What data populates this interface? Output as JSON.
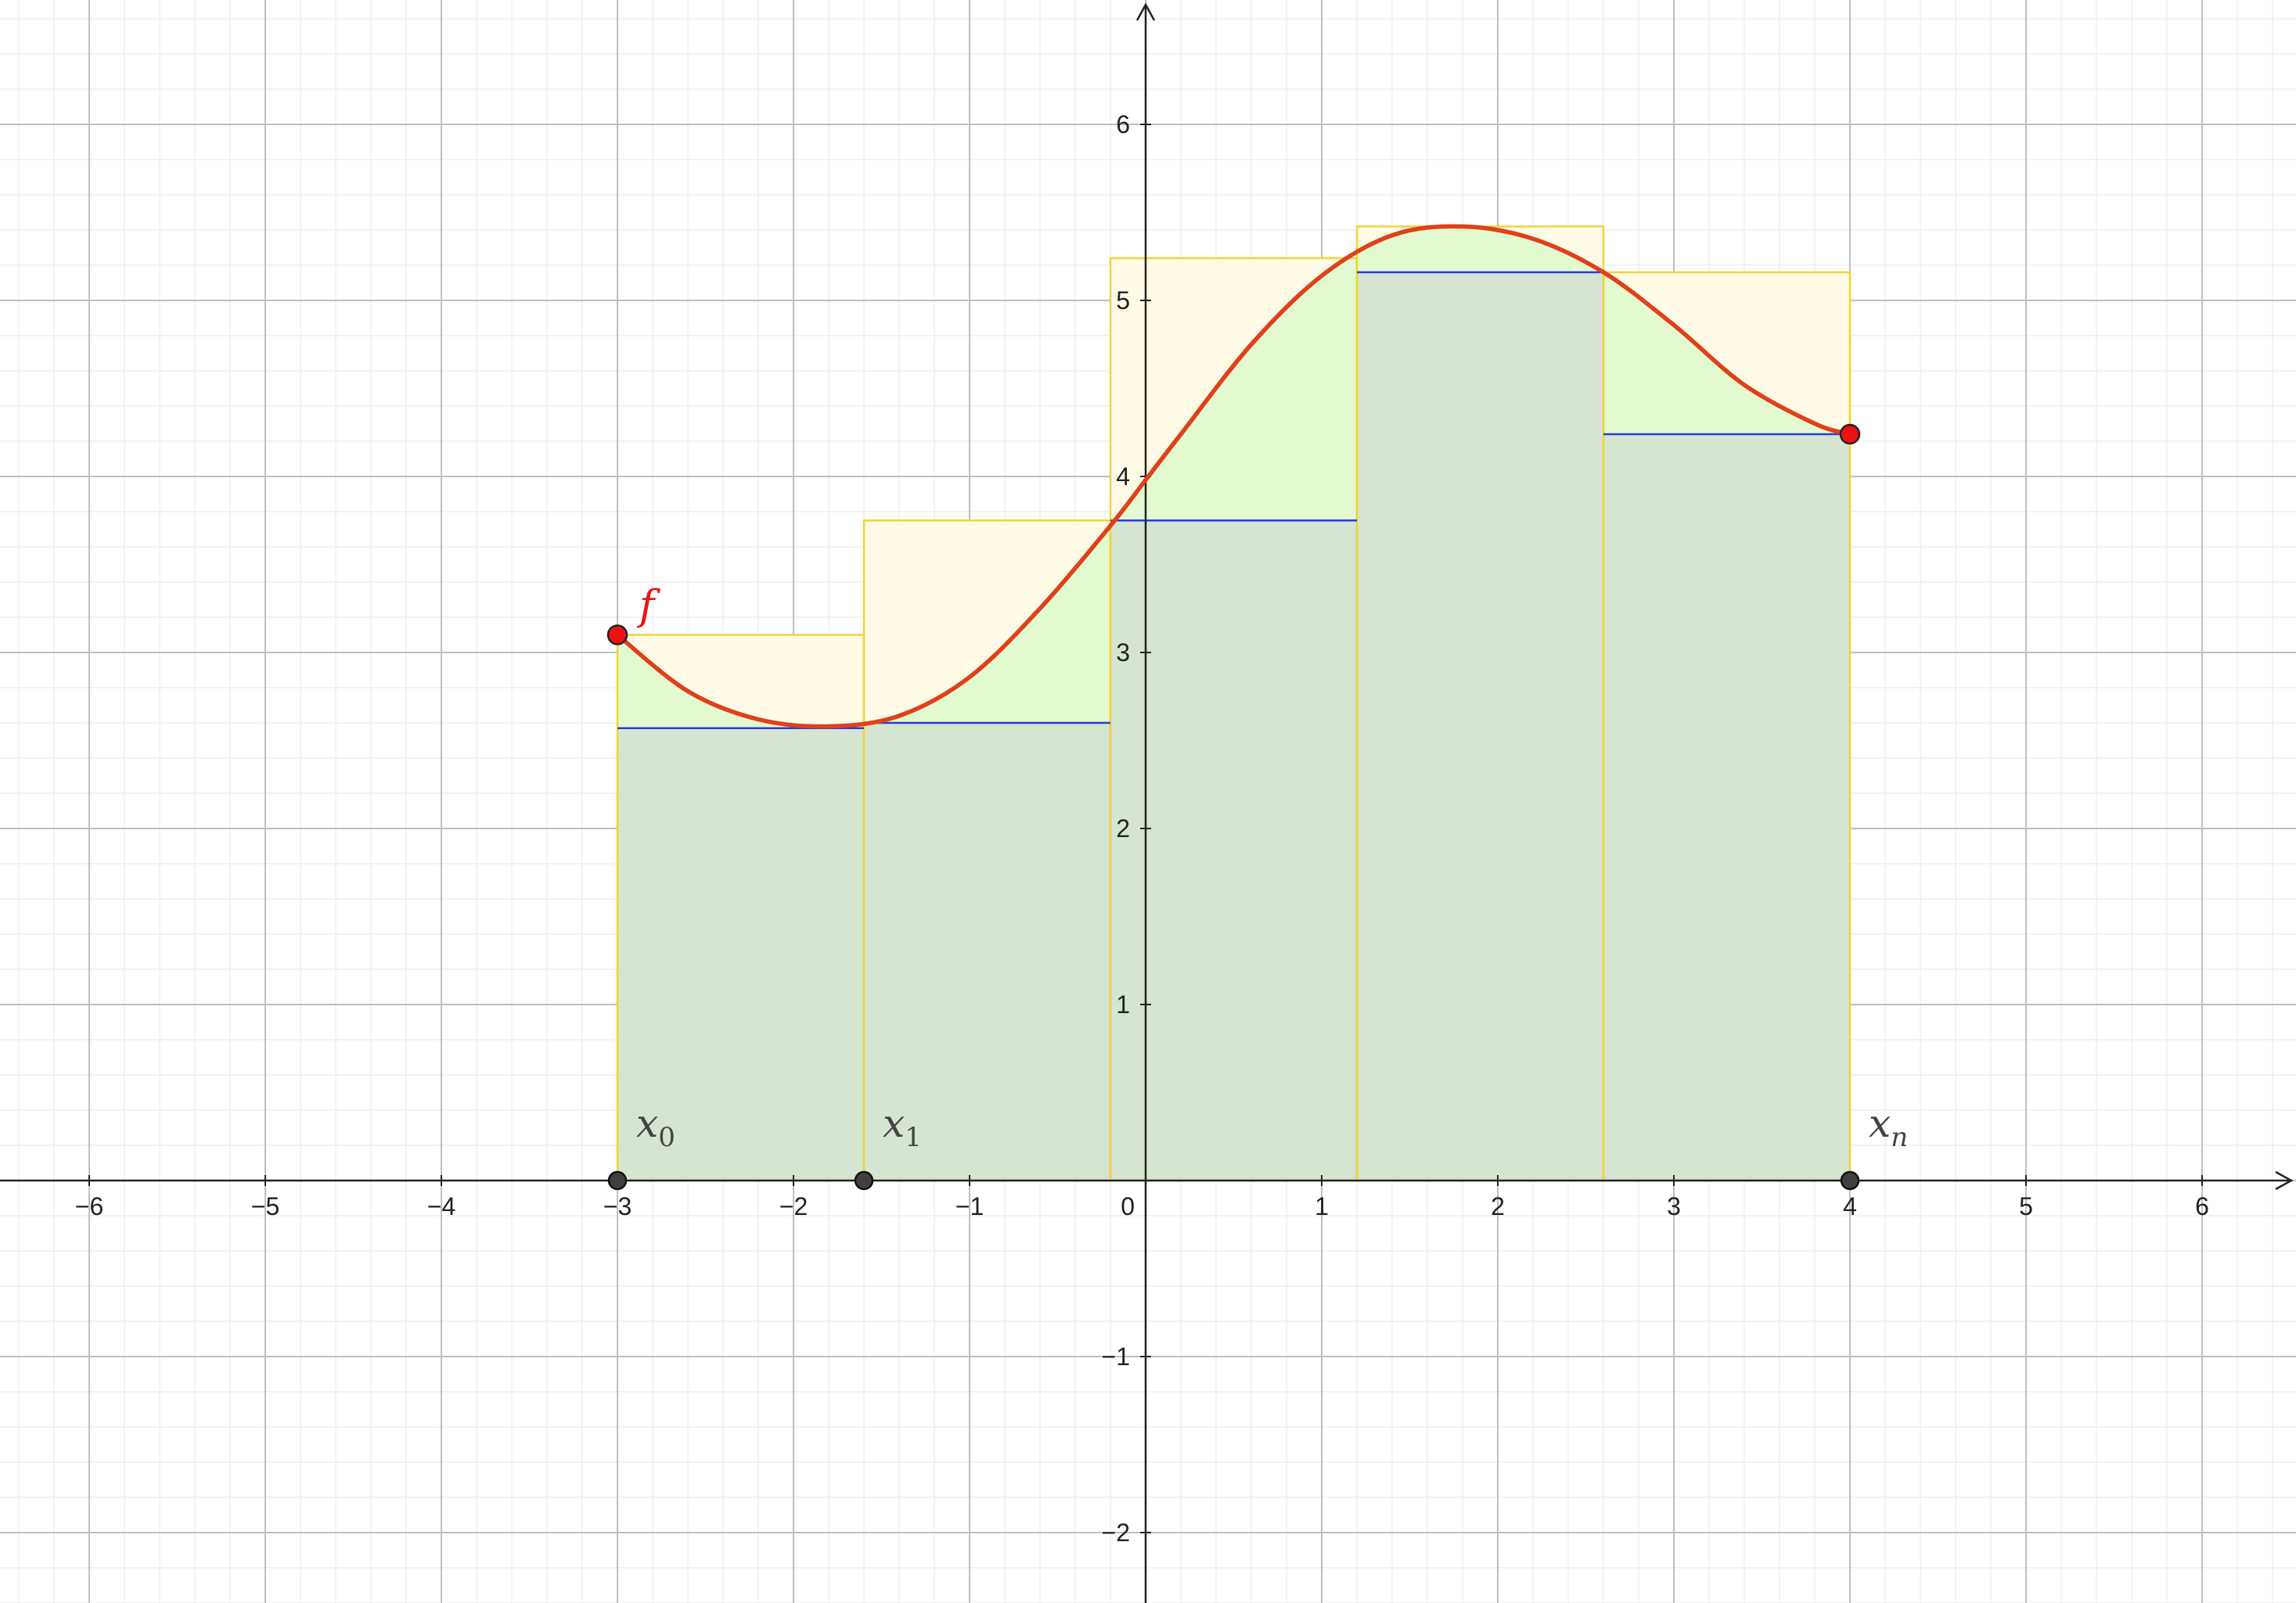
{
  "chart_data": {
    "type": "area",
    "title": "",
    "xlabel": "",
    "ylabel": "",
    "xlim": [
      -6.5,
      6.5
    ],
    "ylim": [
      -2.4,
      6.7
    ],
    "grid": true,
    "x_ticks": [
      -6,
      -5,
      -4,
      -3,
      -2,
      -1,
      0,
      1,
      2,
      3,
      4,
      5,
      6
    ],
    "y_ticks": [
      -2,
      -1,
      1,
      2,
      3,
      4,
      5,
      6
    ],
    "x_tick_labels": [
      "−6",
      "−5",
      "−4",
      "−3",
      "−2",
      "−1",
      "0",
      "1",
      "2",
      "3",
      "4",
      "5",
      "6"
    ],
    "y_tick_labels": [
      "−2",
      "−1",
      "1",
      "2",
      "3",
      "4",
      "5",
      "6"
    ],
    "function": {
      "name": "f",
      "label": "f",
      "color": "#e0401a",
      "x": [
        -3.0,
        -2.6,
        -2.2,
        -1.8,
        -1.4,
        -1.0,
        -0.6,
        -0.2,
        0.0,
        0.2,
        0.6,
        1.0,
        1.4,
        1.8,
        2.2,
        2.6,
        3.0,
        3.4,
        3.8,
        4.0
      ],
      "y": [
        3.1,
        2.78,
        2.62,
        2.58,
        2.64,
        2.86,
        3.25,
        3.72,
        3.98,
        4.24,
        4.75,
        5.14,
        5.37,
        5.42,
        5.35,
        5.16,
        4.86,
        4.52,
        4.3,
        4.24
      ]
    },
    "partition": {
      "points": [
        -3.0,
        -1.6,
        -0.2,
        1.2,
        2.6,
        4.0
      ],
      "upper_sums": [
        3.1,
        3.75,
        5.24,
        5.42,
        5.16
      ],
      "lower_sums": [
        2.57,
        2.6,
        3.75,
        5.16,
        4.24
      ]
    },
    "marked_points": {
      "function_endpoints": [
        {
          "x": -3.0,
          "y": 3.1
        },
        {
          "x": 4.0,
          "y": 4.24
        }
      ],
      "axis_points": [
        {
          "x": -3.0,
          "y": 0,
          "label_base": "x",
          "label_sub": "0"
        },
        {
          "x": -1.6,
          "y": 0,
          "label_base": "x",
          "label_sub": "1"
        },
        {
          "x": 4.0,
          "y": 0,
          "label_base": "x",
          "label_sub": "n"
        }
      ]
    },
    "colors": {
      "curve": "#e0401a",
      "upper_fill": "#fffbe6",
      "upper_stroke": "#f2d33b",
      "between_fill": "#e3f9cf",
      "lower_fill": "#d5e5d1",
      "lower_line": "#2a3cd6",
      "endpoint": "#ee1111",
      "axis_point": "#404040",
      "major_grid": "#bfbfbf",
      "minor_grid": "#ececec",
      "axis": "#222222"
    }
  }
}
